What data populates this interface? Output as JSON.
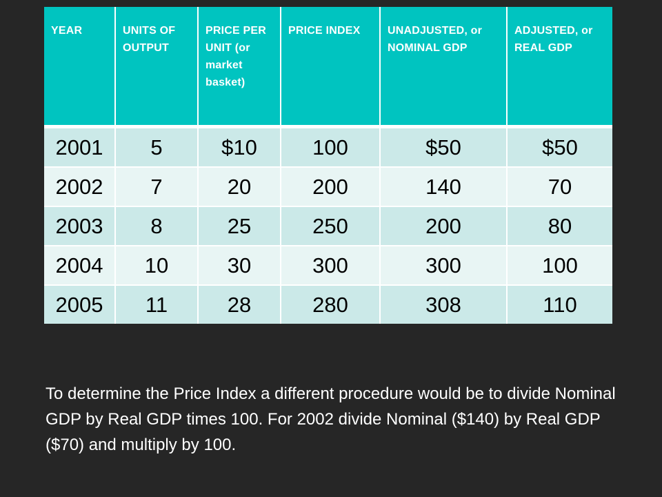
{
  "table": {
    "headers": [
      "YEAR",
      "UNITS OF OUTPUT",
      "PRICE PER UNIT (or market basket)",
      "PRICE INDEX",
      "UNADJUSTED, or NOMINAL GDP",
      "ADJUSTED, or REAL GDP"
    ],
    "rows": [
      [
        "2001",
        "5",
        "$10",
        "100",
        "$50",
        "$50"
      ],
      [
        "2002",
        "7",
        "20",
        "200",
        "140",
        "70"
      ],
      [
        "2003",
        "8",
        "25",
        "250",
        "200",
        "80"
      ],
      [
        "2004",
        "10",
        "30",
        "300",
        "300",
        "100"
      ],
      [
        "2005",
        "11",
        "28",
        "280",
        "308",
        "110"
      ]
    ]
  },
  "note": "To determine the Price Index a different procedure would be to divide Nominal GDP by Real GDP times 100.  For 2002 divide Nominal ($140) by Real GDP ($70) and multiply by 100.",
  "colors": {
    "background": "#262626",
    "header": "#00c4c0",
    "row_odd": "#cbe9e8",
    "row_even": "#e8f5f4",
    "text_light": "#ffffff",
    "text_dark": "#000000"
  }
}
